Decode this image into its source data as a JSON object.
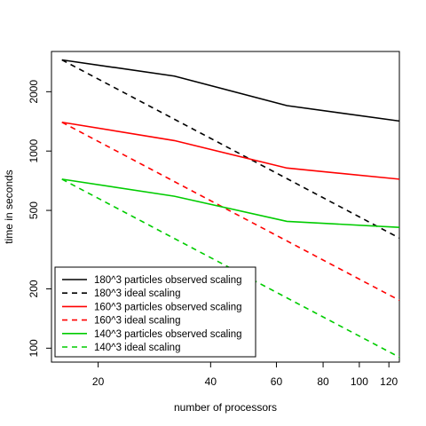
{
  "chart_data": {
    "type": "line",
    "title": "",
    "xlabel": "number of processors",
    "ylabel": "time in seconds",
    "x_scale": "log",
    "y_scale": "log",
    "xlim": [
      15,
      128
    ],
    "ylim": [
      85,
      3200
    ],
    "grid": false,
    "legend_position": "bottom-left",
    "x_ticks": [
      20,
      40,
      60,
      80,
      100,
      120
    ],
    "x_tick_labels": [
      "20",
      "40",
      "60",
      "80",
      "100",
      "120"
    ],
    "y_ticks": [
      100,
      200,
      500,
      1000,
      2000
    ],
    "y_tick_labels": [
      "100",
      "200",
      "500",
      "1000",
      "2000"
    ],
    "x": [
      16,
      32,
      64,
      128
    ],
    "series": [
      {
        "name": "180^3 particles observed scaling",
        "color": "#000000",
        "dash": "solid",
        "values": [
          2900,
          2400,
          1700,
          1420
        ]
      },
      {
        "name": "180^3 ideal scaling",
        "color": "#000000",
        "dash": "dashed",
        "values": [
          2900,
          1450,
          725,
          362
        ]
      },
      {
        "name": "160^3 particles observed scaling",
        "color": "#ff0000",
        "dash": "solid",
        "values": [
          1400,
          1130,
          820,
          720
        ]
      },
      {
        "name": "160^3 ideal scaling",
        "color": "#ff0000",
        "dash": "dashed",
        "values": [
          1400,
          700,
          350,
          175
        ]
      },
      {
        "name": "140^3 particles observed scaling",
        "color": "#00cc00",
        "dash": "solid",
        "values": [
          720,
          590,
          440,
          410
        ]
      },
      {
        "name": "140^3 ideal scaling",
        "color": "#00cc00",
        "dash": "dashed",
        "values": [
          720,
          360,
          180,
          90
        ]
      }
    ]
  }
}
